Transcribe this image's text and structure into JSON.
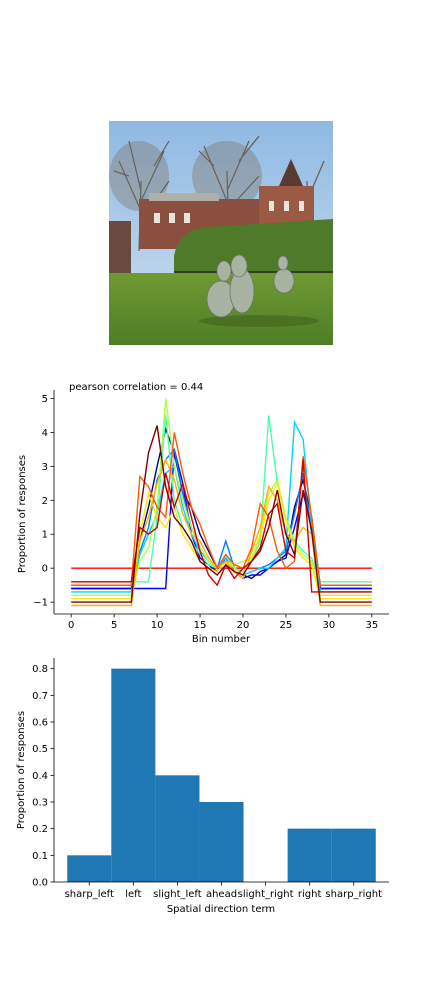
{
  "photo": {
    "icon": "garden-sculpture-photo",
    "colors": {
      "sky": "#9fc3e6",
      "grass": "#5e8a2b",
      "hedge": "#4f7a2a",
      "building": "#8a4f3e",
      "stone": "#9ea89a"
    }
  },
  "chart_data": [
    {
      "type": "line",
      "title": "pearson correlation = 0.44",
      "xlabel": "Bin number",
      "ylabel": "Proportion of responses",
      "xlim": [
        -2,
        37
      ],
      "ylim": [
        -1.35,
        5.25
      ],
      "xticks": [
        0,
        5,
        10,
        15,
        20,
        25,
        30,
        35
      ],
      "yticks": [
        -1,
        0,
        1,
        2,
        3,
        4,
        5
      ],
      "grid": false,
      "series": [
        {
          "color": "#ff0000",
          "values": [
            0,
            0,
            0,
            0,
            0,
            0,
            0,
            0,
            0,
            0,
            0,
            0,
            0,
            0,
            0,
            0,
            0,
            0,
            0,
            0,
            0,
            0,
            0,
            0,
            0,
            0,
            0,
            0,
            0,
            0,
            0,
            0,
            0,
            0,
            0,
            0
          ]
        },
        {
          "color": "#00007f",
          "values": [
            -0.6,
            -0.6,
            -0.6,
            -0.6,
            -0.6,
            -0.6,
            -0.6,
            -0.6,
            0.8,
            1.8,
            3.0,
            4.1,
            3.4,
            2.2,
            1.8,
            1.0,
            0.5,
            0.0,
            0.2,
            0.0,
            -0.2,
            -0.3,
            -0.1,
            0.0,
            0.2,
            0.4,
            1.8,
            2.6,
            1.5,
            -0.6,
            -0.6,
            -0.6,
            -0.6,
            -0.6,
            -0.6,
            -0.6
          ]
        },
        {
          "color": "#0000ff",
          "values": [
            -0.6,
            -0.6,
            -0.6,
            -0.6,
            -0.6,
            -0.6,
            -0.6,
            -0.6,
            -0.6,
            -0.6,
            -0.6,
            -0.6,
            3.5,
            2.5,
            1.0,
            0.3,
            0.1,
            -0.1,
            0.3,
            -0.1,
            -0.3,
            -0.2,
            -0.2,
            0.0,
            0.2,
            0.3,
            1.2,
            2.2,
            1.3,
            -0.6,
            -0.6,
            -0.6,
            -0.6,
            -0.6,
            -0.6,
            -0.6
          ]
        },
        {
          "color": "#007fff",
          "values": [
            -0.5,
            -0.5,
            -0.5,
            -0.5,
            -0.5,
            -0.5,
            -0.5,
            -0.5,
            0.5,
            1.2,
            2.6,
            3.2,
            3.5,
            2.2,
            1.2,
            0.6,
            0.2,
            0.0,
            0.8,
            0.0,
            -0.2,
            -0.1,
            0.0,
            0.1,
            0.3,
            0.5,
            1.6,
            2.8,
            1.0,
            -0.5,
            -0.5,
            -0.5,
            -0.5,
            -0.5,
            -0.5,
            -0.5
          ]
        },
        {
          "color": "#00d4ff",
          "values": [
            -0.7,
            -0.7,
            -0.7,
            -0.7,
            -0.7,
            -0.7,
            -0.7,
            -0.7,
            0.4,
            1.0,
            1.6,
            2.8,
            3.0,
            1.8,
            1.0,
            0.5,
            0.2,
            0.0,
            0.3,
            0.0,
            -0.2,
            -0.1,
            0.0,
            0.0,
            0.3,
            0.6,
            4.3,
            3.8,
            1.2,
            -0.7,
            -0.7,
            -0.7,
            -0.7,
            -0.7,
            -0.7,
            -0.7
          ]
        },
        {
          "color": "#4dffaa",
          "values": [
            -0.4,
            -0.4,
            -0.4,
            -0.4,
            -0.4,
            -0.4,
            -0.4,
            -0.4,
            -0.4,
            -0.4,
            1.5,
            4.5,
            2.0,
            1.2,
            0.8,
            0.4,
            0.1,
            0.0,
            0.4,
            0.0,
            -0.1,
            0.2,
            0.8,
            4.5,
            2.5,
            1.5,
            0.8,
            0.5,
            0.3,
            -0.4,
            -0.4,
            -0.4,
            -0.4,
            -0.4,
            -0.4,
            -0.4
          ]
        },
        {
          "color": "#aaff4d",
          "values": [
            -0.8,
            -0.8,
            -0.8,
            -0.8,
            -0.8,
            -0.8,
            -0.8,
            -0.8,
            0.2,
            0.6,
            1.8,
            5.0,
            3.0,
            2.0,
            1.2,
            0.6,
            0.2,
            0.0,
            0.2,
            0.1,
            0.2,
            0.3,
            1.0,
            2.2,
            2.6,
            1.5,
            0.7,
            0.4,
            0.2,
            -0.8,
            -0.8,
            -0.8,
            -0.8,
            -0.8,
            -0.8,
            -0.8
          ]
        },
        {
          "color": "#ffe600",
          "values": [
            -0.9,
            -0.9,
            -0.9,
            -0.9,
            -0.9,
            -0.9,
            -0.9,
            -0.9,
            1.0,
            2.2,
            1.5,
            1.2,
            1.8,
            1.0,
            0.6,
            0.2,
            0.0,
            -0.1,
            0.2,
            0.0,
            -0.2,
            0.3,
            0.9,
            2.0,
            2.5,
            1.4,
            0.6,
            0.3,
            0.1,
            -0.9,
            -0.9,
            -0.9,
            -0.9,
            -0.9,
            -0.9,
            -0.9
          ]
        },
        {
          "color": "#ffb000",
          "values": [
            -1.1,
            -1.1,
            -1.1,
            -1.1,
            -1.1,
            -1.1,
            -1.1,
            -1.1,
            0.8,
            1.5,
            2.5,
            3.2,
            2.6,
            1.6,
            1.0,
            0.8,
            0.3,
            0.0,
            0.2,
            -0.1,
            -0.3,
            0.5,
            1.2,
            2.4,
            2.0,
            1.0,
            0.8,
            1.2,
            1.0,
            -1.1,
            -1.1,
            -1.1,
            -1.1,
            -1.1,
            -1.1,
            -1.1
          ]
        },
        {
          "color": "#ff5a00",
          "values": [
            -0.5,
            -0.5,
            -0.5,
            -0.5,
            -0.5,
            -0.5,
            -0.5,
            -0.5,
            2.7,
            2.4,
            1.8,
            1.5,
            4.0,
            2.8,
            1.8,
            1.3,
            0.6,
            0.0,
            0.4,
            0.1,
            0.0,
            0.6,
            1.9,
            1.5,
            0.5,
            0.0,
            0.2,
            3.3,
            1.5,
            -0.5,
            -0.5,
            -0.5,
            -0.5,
            -0.5,
            -0.5,
            -0.5
          ]
        },
        {
          "color": "#d40000",
          "values": [
            -0.4,
            -0.4,
            -0.4,
            -0.4,
            -0.4,
            -0.4,
            -0.4,
            -0.4,
            1.2,
            1.0,
            1.2,
            2.8,
            1.8,
            2.5,
            1.5,
            0.5,
            -0.2,
            -0.5,
            0.1,
            -0.3,
            0.0,
            0.2,
            0.6,
            1.6,
            1.9,
            0.5,
            0.3,
            3.2,
            -0.7,
            -0.7,
            -0.7,
            -0.7,
            -0.7,
            -0.7,
            -0.7,
            -0.7
          ]
        },
        {
          "color": "#7f0000",
          "values": [
            -1.0,
            -1.0,
            -1.0,
            -1.0,
            -1.0,
            -1.0,
            -1.0,
            -1.0,
            1.6,
            3.4,
            4.2,
            2.4,
            1.5,
            1.2,
            0.8,
            0.2,
            0.0,
            -0.2,
            0.1,
            -0.1,
            -0.2,
            0.2,
            0.5,
            1.2,
            2.3,
            1.0,
            0.4,
            2.3,
            1.1,
            -1.0,
            -1.0,
            -1.0,
            -1.0,
            -1.0,
            -1.0,
            -1.0
          ]
        }
      ]
    },
    {
      "type": "bar",
      "xlabel": "Spatial direction term",
      "ylabel": "Proportion of responses",
      "categories": [
        "sharp_left",
        "left",
        "slight_left",
        "ahead",
        "slight_right",
        "right",
        "sharp_right"
      ],
      "values": [
        0.1,
        0.8,
        0.4,
        0.3,
        0.0,
        0.2,
        0.2
      ],
      "ylim": [
        0,
        0.84
      ],
      "yticks": [
        "0.0",
        "0.1",
        "0.2",
        "0.3",
        "0.4",
        "0.5",
        "0.6",
        "0.7",
        "0.8"
      ],
      "color": "#1f77b4",
      "grid": false
    }
  ]
}
